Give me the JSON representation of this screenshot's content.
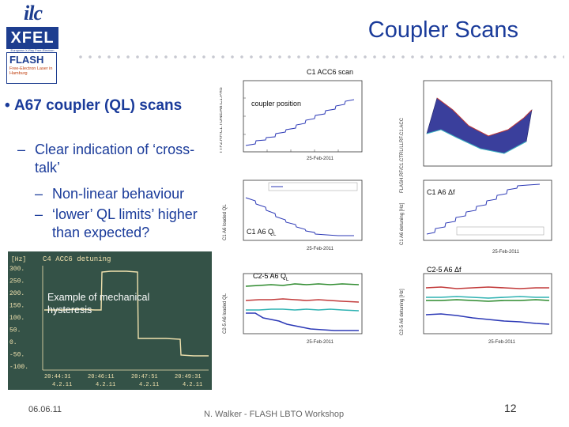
{
  "logos": {
    "ilc": "ilc",
    "xfel": "XFEL",
    "xfel_sub": "European X-Ray Free-Electron Laser",
    "flash": "FLASH",
    "flash_sub": "Free-Electron Laser in Hamburg"
  },
  "header": {
    "title": "Coupler Scans"
  },
  "body": {
    "main_bullet": "A67 coupler (QL) scans",
    "sub_bullets": [
      "Clear indication of ‘cross-talk’",
      "Non-linear behaviour",
      "‘lower’ QL limits’ higher than expected?"
    ]
  },
  "figure_labels": {
    "top_caption": "C1 ACC6 scan",
    "coupler_position": "coupler position",
    "c1_a6_ql": "C1 A6 QL",
    "c1_a6_df": "C1 A6 Δf",
    "c2_5_a6_ql": "C2-5 A6 QL",
    "c2_5_a6_df": "C2-5 A6 Δf",
    "date": "25-Feb-2011",
    "scope_title": "C4 ACC6 detuning",
    "scope_tag": "[Hz]",
    "scope_annotation": "Example of mechanical hysteresis",
    "scope_yticks": [
      "300.",
      "250.",
      "200.",
      "150.",
      "100.",
      "50.",
      "0.",
      "-50.",
      "-100."
    ],
    "scope_xticks": [
      "20:44:31",
      "20:46:11",
      "20:47:51",
      "20:49:31"
    ],
    "scope_xticks2": [
      "4.2.11",
      "4.2.11",
      "4.2.11",
      "4.2.11"
    ]
  },
  "footer": {
    "date": "06.06.11",
    "author": "N. Walker - FLASH LBTO Workshop",
    "page": "12"
  },
  "colors": {
    "accent": "#1a3b9a",
    "scope_bg": "#345247",
    "scope_trace": "#f1e2ae"
  }
}
